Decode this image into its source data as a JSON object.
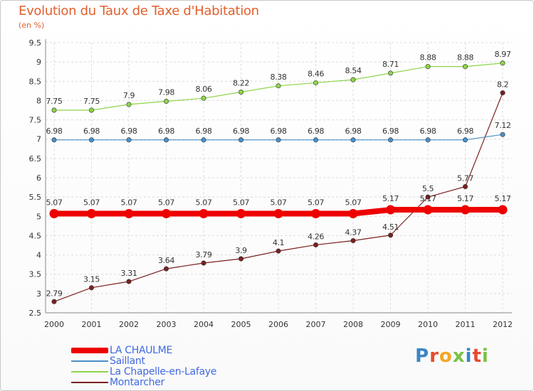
{
  "title": "Evolution du Taux de Taxe d'Habitation",
  "unit_label": "(en %)",
  "logo_text": "Proxiti",
  "chart_data": {
    "type": "line",
    "title": "Evolution du Taux de Taxe d'Habitation",
    "ylabel": "(en %)",
    "xlabel": "",
    "ylim": [
      2.5,
      9.5
    ],
    "yticks": [
      "2.5",
      "3",
      "3.5",
      "4",
      "4.5",
      "5",
      "5.5",
      "6",
      "6.5",
      "7",
      "7.5",
      "8",
      "8.5",
      "9",
      "9.5"
    ],
    "categories": [
      "2000",
      "2001",
      "2002",
      "2003",
      "2004",
      "2005",
      "2006",
      "2007",
      "2008",
      "2009",
      "2010",
      "2011",
      "2012"
    ],
    "grid": true,
    "series": [
      {
        "name": "LA CHAULME",
        "color": "#ee0000",
        "values": [
          5.07,
          5.07,
          5.07,
          5.07,
          5.07,
          5.07,
          5.07,
          5.07,
          5.07,
          5.17,
          5.17,
          5.17,
          5.17
        ],
        "labels": [
          "5.07",
          "5.07",
          "5.07",
          "5.07",
          "5.07",
          "5.07",
          "5.07",
          "5.07",
          "5.07",
          "5.17",
          "5.17",
          "5.17",
          "5.17"
        ]
      },
      {
        "name": "Saillant",
        "color": "#4a90c8",
        "values": [
          6.98,
          6.98,
          6.98,
          6.98,
          6.98,
          6.98,
          6.98,
          6.98,
          6.98,
          6.98,
          6.98,
          6.98,
          7.12
        ],
        "labels": [
          "6.98",
          "6.98",
          "6.98",
          "6.98",
          "6.98",
          "6.98",
          "6.98",
          "6.98",
          "6.98",
          "6.98",
          "6.98",
          "6.98",
          "7.12"
        ]
      },
      {
        "name": "La Chapelle-en-Lafaye",
        "color": "#8ed44a",
        "values": [
          7.75,
          7.75,
          7.9,
          7.98,
          8.06,
          8.22,
          8.38,
          8.46,
          8.54,
          8.71,
          8.88,
          8.88,
          8.97
        ],
        "labels": [
          "7.75",
          "7.75",
          "7.9",
          "7.98",
          "8.06",
          "8.22",
          "8.38",
          "8.46",
          "8.54",
          "8.71",
          "8.88",
          "8.88",
          "8.97"
        ]
      },
      {
        "name": "Montarcher",
        "color": "#7a2020",
        "values": [
          2.79,
          3.15,
          3.31,
          3.64,
          3.79,
          3.9,
          4.1,
          4.26,
          4.37,
          4.51,
          5.5,
          5.77,
          8.2
        ],
        "labels": [
          "2.79",
          "3.15",
          "3.31",
          "3.64",
          "3.79",
          "3.9",
          "4.1",
          "4.26",
          "4.37",
          "4.51",
          "5.5",
          "5.77",
          "8.2"
        ]
      }
    ]
  }
}
